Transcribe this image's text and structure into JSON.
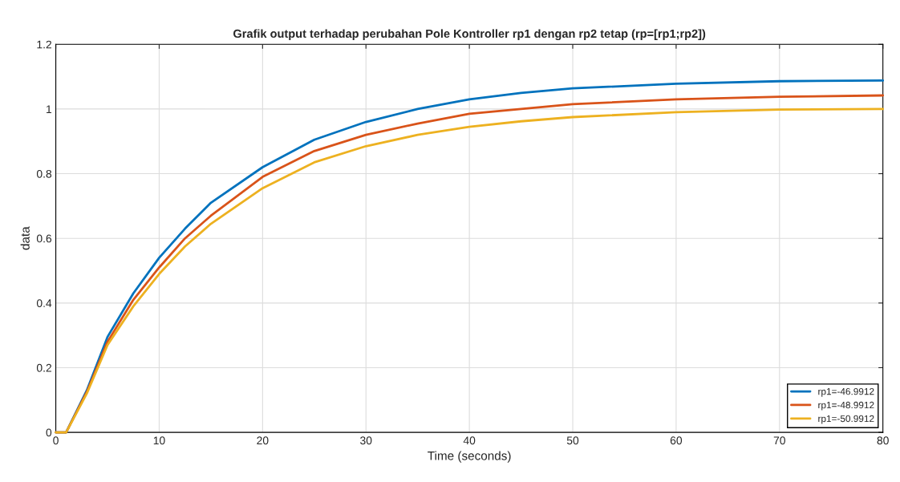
{
  "chart_data": {
    "type": "line",
    "title": "Grafik output terhadap perubahan Pole Kontroller rp1 dengan rp2 tetap (rp=[rp1;rp2])",
    "xlabel": "Time (seconds)",
    "ylabel": "data",
    "x": [
      0,
      1,
      3,
      5,
      7.5,
      10,
      12.5,
      15,
      20,
      25,
      30,
      35,
      40,
      45,
      50,
      60,
      70,
      80
    ],
    "series": [
      {
        "name": "rp1=-46.9912",
        "color": "#0072bd",
        "values": [
          0,
          0,
          0.13,
          0.295,
          0.43,
          0.54,
          0.63,
          0.71,
          0.82,
          0.905,
          0.96,
          1.0,
          1.03,
          1.05,
          1.064,
          1.078,
          1.086,
          1.088
        ]
      },
      {
        "name": "rp1=-48.9912",
        "color": "#d95319",
        "values": [
          0,
          0,
          0.125,
          0.28,
          0.41,
          0.51,
          0.6,
          0.67,
          0.79,
          0.87,
          0.92,
          0.955,
          0.985,
          1.0,
          1.015,
          1.03,
          1.038,
          1.042
        ]
      },
      {
        "name": "rp1=-50.9912",
        "color": "#edb120",
        "values": [
          0,
          0,
          0.12,
          0.27,
          0.39,
          0.49,
          0.575,
          0.645,
          0.755,
          0.835,
          0.885,
          0.92,
          0.945,
          0.962,
          0.975,
          0.99,
          0.998,
          1.0
        ]
      }
    ],
    "xlim": [
      0,
      80
    ],
    "xticks": [
      0,
      10,
      20,
      30,
      40,
      50,
      60,
      70,
      80
    ],
    "ylim": [
      0,
      1.2
    ],
    "yticks": [
      0,
      0.2,
      0.4,
      0.6,
      0.8,
      1,
      1.2
    ],
    "grid": true,
    "legend": "bottom right",
    "line_style": "solid"
  }
}
